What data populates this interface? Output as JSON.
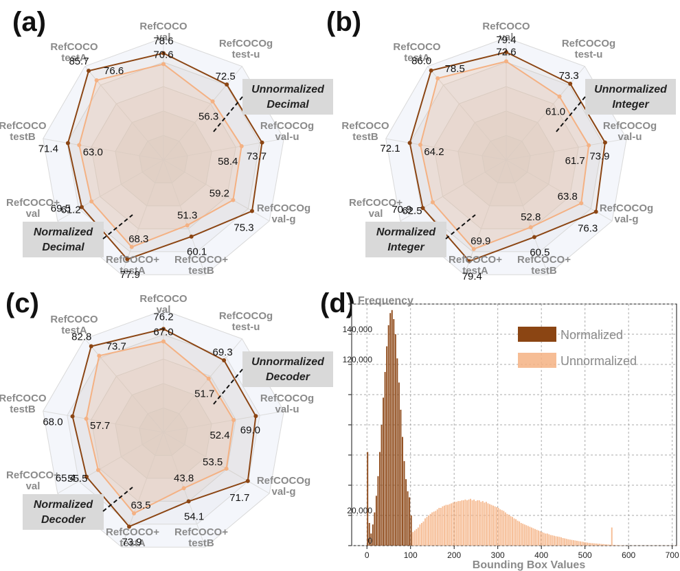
{
  "colors": {
    "normalized": "#8B4513",
    "unnormalized": "#F4B183",
    "grid": "#d9d9d9",
    "callout_bg": "#d9d9d9"
  },
  "chart_data": [
    {
      "type": "radar",
      "panel": "(a)",
      "axes": [
        "RefCOCO\nval",
        "RefCOCOg\ntest-u",
        "RefCOCOg\nval-u",
        "RefCOCOg\nval-g",
        "RefCOCO+\ntestB",
        "RefCOCO+\ntestA",
        "RefCOCO+\nval",
        "RefCOCO\ntestB",
        "RefCOCO\ntestA"
      ],
      "series": [
        {
          "values": [
            78.6,
            72.5,
            73.7,
            75.3,
            60.1,
            77.9,
            69.5,
            71.4,
            85.7
          ]
        },
        {
          "values": [
            70.6,
            56.3,
            58.4,
            59.2,
            51.3,
            68.3,
            61.2,
            63.0,
            76.6
          ]
        }
      ],
      "callouts": [
        "Unnormalized\nDecimal",
        "Normalized\nDecimal"
      ]
    },
    {
      "type": "radar",
      "panel": "(b)",
      "axes": [
        "RefCOCO\nval",
        "RefCOCOg\ntest-u",
        "RefCOCOg\nval-u",
        "RefCOCOg\nval-g",
        "RefCOCO+\ntestB",
        "RefCOCO+\ntestA",
        "RefCOCO+\nval",
        "RefCOCO\ntestB",
        "RefCOCO\ntestA"
      ],
      "series": [
        {
          "values": [
            79.4,
            73.3,
            73.9,
            76.3,
            60.5,
            79.4,
            70.9,
            72.1,
            86.0
          ]
        },
        {
          "values": [
            72.6,
            61.0,
            61.7,
            63.8,
            52.8,
            69.9,
            62.5,
            64.2,
            78.5
          ]
        }
      ],
      "callouts": [
        "Unnormalized\nInteger",
        "Normalized\nInteger"
      ]
    },
    {
      "type": "radar",
      "panel": "(c)",
      "axes": [
        "RefCOCO\nval",
        "RefCOCOg\ntest-u",
        "RefCOCOg\nval-u",
        "RefCOCOg\nval-g",
        "RefCOCO+\ntestB",
        "RefCOCO+\ntestA",
        "RefCOCO+\nval",
        "RefCOCO\ntestB",
        "RefCOCO\ntestA"
      ],
      "series": [
        {
          "values": [
            76.2,
            69.3,
            69.0,
            71.7,
            54.1,
            73.9,
            65.4,
            68.0,
            82.8
          ]
        },
        {
          "values": [
            67.0,
            51.7,
            52.4,
            53.5,
            43.8,
            63.5,
            55.5,
            57.7,
            73.7
          ]
        }
      ],
      "callouts": [
        "Unnormalized\nDecoder",
        "Normalized\nDecoder"
      ]
    },
    {
      "type": "histogram",
      "panel": "(d)",
      "ylabel": "Frequency",
      "xlabel": "Bounding Box Values",
      "xlim": [
        -35,
        710
      ],
      "ylim": [
        0,
        160000
      ],
      "xticks": [
        0,
        100,
        200,
        300,
        400,
        500,
        600,
        700
      ],
      "yticks_labeled": [
        "0",
        "20,000",
        "120,000",
        "140,000"
      ],
      "ytick_positions": [
        0,
        20000,
        120000,
        140000
      ],
      "grid": true,
      "bin_width": 4,
      "series": [
        {
          "name": "Normalized",
          "x_start": 0,
          "values": [
            62000,
            15000,
            8000,
            14000,
            22000,
            33000,
            46000,
            62000,
            80000,
            98000,
            115000,
            132000,
            146000,
            154000,
            156000,
            150000,
            140000,
            124000,
            108000,
            90000,
            72000,
            56000,
            44000,
            36000,
            32000,
            20000
          ]
        },
        {
          "name": "Unnormalized",
          "x_start": 0,
          "values": [
            0,
            0,
            0,
            0,
            0,
            0,
            0,
            0,
            0,
            0,
            0,
            0,
            0,
            0,
            0,
            0,
            0,
            0,
            0,
            0,
            0,
            0,
            0,
            0,
            0,
            8000,
            9000,
            10000,
            11000,
            12000,
            14000,
            15000,
            16000,
            18000,
            19000,
            20000,
            21000,
            22000,
            22500,
            23000,
            24000,
            25000,
            25000,
            26000,
            26500,
            27000,
            27000,
            27500,
            28000,
            28500,
            29000,
            29000,
            29500,
            29500,
            30000,
            30000,
            30500,
            30000,
            30500,
            31000,
            30000,
            30500,
            29500,
            30000,
            30000,
            29000,
            29500,
            28500,
            29000,
            28000,
            27500,
            27000,
            26500,
            26000,
            25500,
            25000,
            24000,
            23500,
            23000,
            22000,
            21000,
            20500,
            19500,
            19000,
            18000,
            17500,
            16500,
            16000,
            15000,
            14500,
            14000,
            13500,
            13000,
            12500,
            12000,
            11500,
            11000,
            10500,
            10000,
            9500,
            9000,
            8500,
            8000,
            8000,
            7500,
            7000,
            6800,
            6500,
            6200,
            6000,
            5800,
            5500,
            5000,
            4800,
            4500,
            4200,
            4000,
            3800,
            3600,
            3400,
            3200,
            3000,
            2800,
            2600,
            2400,
            2200,
            2000,
            1800,
            1700,
            1600,
            1500,
            1400,
            1300,
            1200,
            1100,
            1000,
            900,
            800,
            700,
            600,
            12000,
            500,
            400,
            300,
            300,
            200,
            200,
            100,
            100,
            100,
            100,
            100,
            100,
            100,
            100,
            100,
            100,
            100,
            100,
            100,
            100,
            100,
            100,
            100,
            100,
            100,
            100,
            100,
            100,
            100,
            100,
            100,
            100,
            100,
            100,
            100,
            100,
            100,
            100,
            100
          ]
        }
      ]
    }
  ]
}
